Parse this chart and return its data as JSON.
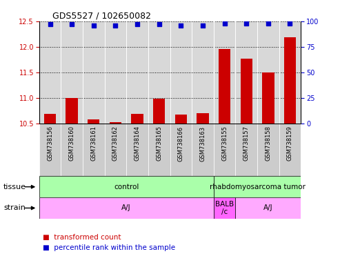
{
  "title": "GDS5527 / 102650082",
  "samples": [
    "GSM738156",
    "GSM738160",
    "GSM738161",
    "GSM738162",
    "GSM738164",
    "GSM738165",
    "GSM738166",
    "GSM738163",
    "GSM738155",
    "GSM738157",
    "GSM738158",
    "GSM738159"
  ],
  "transformed_counts": [
    10.68,
    11.0,
    10.57,
    10.52,
    10.68,
    10.98,
    10.67,
    10.7,
    11.96,
    11.77,
    11.5,
    12.18
  ],
  "percentile_ranks": [
    97,
    97,
    96,
    96,
    97,
    97,
    96,
    96,
    98,
    98,
    98,
    98
  ],
  "ylim_left": [
    10.5,
    12.5
  ],
  "ylim_right": [
    0,
    100
  ],
  "yticks_left": [
    10.5,
    11.0,
    11.5,
    12.0,
    12.5
  ],
  "yticks_right": [
    0,
    25,
    50,
    75,
    100
  ],
  "bar_color": "#cc0000",
  "dot_color": "#0000cc",
  "tissue_groups": [
    {
      "label": "control",
      "start": 0,
      "end": 8,
      "color": "#aaffaa"
    },
    {
      "label": "rhabdomyosarcoma tumor",
      "start": 8,
      "end": 12,
      "color": "#aaffaa"
    }
  ],
  "strain_groups": [
    {
      "label": "A/J",
      "start": 0,
      "end": 8,
      "color": "#ffaaff"
    },
    {
      "label": "BALB\n/c",
      "start": 8,
      "end": 9,
      "color": "#ff66ff"
    },
    {
      "label": "A/J",
      "start": 9,
      "end": 12,
      "color": "#ffaaff"
    }
  ],
  "tissue_label": "tissue",
  "strain_label": "strain",
  "legend_bar_label": "transformed count",
  "legend_dot_label": "percentile rank within the sample",
  "plot_bg_color": "#d8d8d8",
  "fig_width": 4.93,
  "fig_height": 3.84,
  "n_samples": 12
}
